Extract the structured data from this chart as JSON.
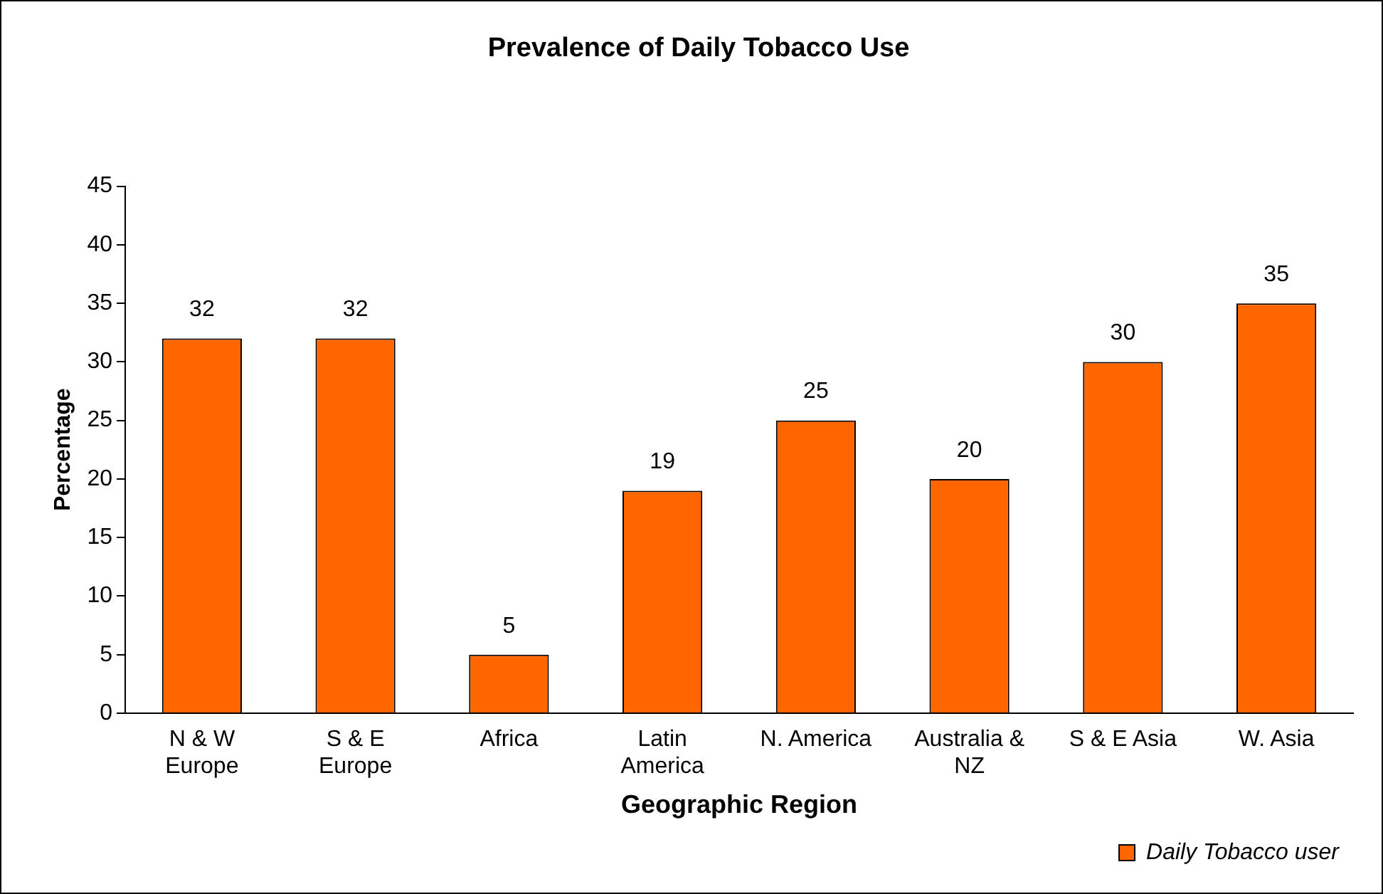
{
  "chart_data": {
    "type": "bar",
    "title": "Prevalence of Daily Tobacco Use",
    "xlabel": "Geographic Region",
    "ylabel": "Percentage",
    "categories": [
      "N & W\nEurope",
      "S & E\nEurope",
      "Africa",
      "Latin\nAmerica",
      "N. America",
      "Australia &\nNZ",
      "S & E Asia",
      "W. Asia"
    ],
    "series": [
      {
        "name": "Daily Tobacco user",
        "color": "#ff6600",
        "values": [
          32,
          32,
          5,
          19,
          25,
          20,
          30,
          35
        ]
      }
    ],
    "ylim": [
      0,
      45
    ],
    "yticks": [
      0,
      5,
      10,
      15,
      20,
      25,
      30,
      35,
      40,
      45
    ],
    "grid": false,
    "legend": "bottom right",
    "data_labels": true
  }
}
